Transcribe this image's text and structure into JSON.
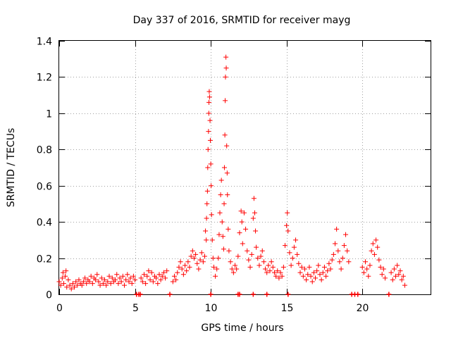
{
  "chart_data": {
    "type": "scatter",
    "title": "Day 337 of 2016, SRMTID for receiver mayg",
    "xlabel": "GPS time / hours",
    "ylabel": "SRMTID / TECUs",
    "xlim": [
      0,
      24.5
    ],
    "ylim": [
      0,
      1.4
    ],
    "xticks": [
      0,
      5,
      10,
      15,
      20
    ],
    "xtick_labels": [
      "0",
      "5",
      "10",
      "15",
      "20"
    ],
    "yticks": [
      0,
      0.2,
      0.4,
      0.6,
      0.8,
      1.0,
      1.2,
      1.4
    ],
    "ytick_labels": [
      "0",
      "0.2",
      "0.4",
      "0.6",
      "0.8",
      "1",
      "1.2",
      "1.4"
    ],
    "grid": true,
    "marker": "+",
    "color": "#ff0000",
    "series": [
      {
        "name": "SRMTID",
        "points": [
          [
            0.0,
            0.07
          ],
          [
            0.1,
            0.05
          ],
          [
            0.2,
            0.09
          ],
          [
            0.25,
            0.12
          ],
          [
            0.3,
            0.06
          ],
          [
            0.4,
            0.1
          ],
          [
            0.45,
            0.13
          ],
          [
            0.5,
            0.04
          ],
          [
            0.6,
            0.08
          ],
          [
            0.7,
            0.05
          ],
          [
            0.8,
            0.03
          ],
          [
            0.9,
            0.06
          ],
          [
            1.0,
            0.04
          ],
          [
            1.1,
            0.07
          ],
          [
            1.2,
            0.05
          ],
          [
            1.3,
            0.08
          ],
          [
            1.4,
            0.06
          ],
          [
            1.5,
            0.05
          ],
          [
            1.6,
            0.07
          ],
          [
            1.7,
            0.09
          ],
          [
            1.8,
            0.06
          ],
          [
            1.9,
            0.08
          ],
          [
            2.0,
            0.07
          ],
          [
            2.1,
            0.1
          ],
          [
            2.2,
            0.06
          ],
          [
            2.3,
            0.09
          ],
          [
            2.4,
            0.08
          ],
          [
            2.5,
            0.11
          ],
          [
            2.6,
            0.07
          ],
          [
            2.7,
            0.05
          ],
          [
            2.8,
            0.09
          ],
          [
            2.9,
            0.06
          ],
          [
            3.0,
            0.08
          ],
          [
            3.1,
            0.05
          ],
          [
            3.2,
            0.07
          ],
          [
            3.3,
            0.1
          ],
          [
            3.4,
            0.06
          ],
          [
            3.5,
            0.09
          ],
          [
            3.6,
            0.07
          ],
          [
            3.7,
            0.08
          ],
          [
            3.8,
            0.11
          ],
          [
            3.9,
            0.06
          ],
          [
            4.0,
            0.09
          ],
          [
            4.1,
            0.07
          ],
          [
            4.2,
            0.1
          ],
          [
            4.3,
            0.05
          ],
          [
            4.4,
            0.08
          ],
          [
            4.5,
            0.11
          ],
          [
            4.6,
            0.07
          ],
          [
            4.7,
            0.09
          ],
          [
            4.8,
            0.06
          ],
          [
            4.9,
            0.1
          ],
          [
            5.0,
            0.08
          ],
          [
            5.4,
            0.09
          ],
          [
            5.5,
            0.07
          ],
          [
            5.6,
            0.11
          ],
          [
            5.7,
            0.06
          ],
          [
            5.8,
            0.1
          ],
          [
            5.9,
            0.13
          ],
          [
            6.0,
            0.08
          ],
          [
            6.1,
            0.12
          ],
          [
            6.2,
            0.07
          ],
          [
            6.3,
            0.1
          ],
          [
            6.4,
            0.09
          ],
          [
            6.5,
            0.06
          ],
          [
            6.6,
            0.11
          ],
          [
            6.7,
            0.08
          ],
          [
            6.8,
            0.1
          ],
          [
            6.9,
            0.12
          ],
          [
            7.0,
            0.09
          ],
          [
            7.1,
            0.13
          ],
          [
            7.5,
            0.07
          ],
          [
            7.6,
            0.1
          ],
          [
            7.7,
            0.08
          ],
          [
            7.8,
            0.12
          ],
          [
            7.9,
            0.15
          ],
          [
            8.0,
            0.18
          ],
          [
            8.1,
            0.14
          ],
          [
            8.2,
            0.11
          ],
          [
            8.3,
            0.16
          ],
          [
            8.4,
            0.13
          ],
          [
            8.5,
            0.18
          ],
          [
            8.6,
            0.15
          ],
          [
            8.7,
            0.21
          ],
          [
            8.8,
            0.24
          ],
          [
            8.9,
            0.2
          ],
          [
            9.0,
            0.22
          ],
          [
            9.1,
            0.17
          ],
          [
            9.2,
            0.14
          ],
          [
            9.3,
            0.19
          ],
          [
            9.4,
            0.23
          ],
          [
            9.5,
            0.18
          ],
          [
            9.6,
            0.21
          ],
          [
            9.65,
            0.35
          ],
          [
            9.7,
            0.3
          ],
          [
            9.72,
            0.42
          ],
          [
            9.75,
            0.5
          ],
          [
            9.78,
            0.57
          ],
          [
            9.8,
            0.7
          ],
          [
            9.82,
            0.8
          ],
          [
            9.85,
            0.9
          ],
          [
            9.87,
            1.0
          ],
          [
            9.88,
            1.06
          ],
          [
            9.9,
            1.12
          ],
          [
            9.92,
            1.09
          ],
          [
            9.95,
            0.96
          ],
          [
            9.97,
            0.85
          ],
          [
            10.0,
            0.72
          ],
          [
            10.02,
            0.6
          ],
          [
            10.05,
            0.44
          ],
          [
            10.1,
            0.3
          ],
          [
            10.15,
            0.2
          ],
          [
            10.2,
            0.15
          ],
          [
            10.3,
            0.1
          ],
          [
            10.4,
            0.14
          ],
          [
            10.5,
            0.2
          ],
          [
            10.55,
            0.33
          ],
          [
            10.6,
            0.45
          ],
          [
            10.65,
            0.55
          ],
          [
            10.7,
            0.63
          ],
          [
            10.75,
            0.4
          ],
          [
            10.8,
            0.32
          ],
          [
            10.85,
            0.25
          ],
          [
            10.88,
            0.5
          ],
          [
            10.9,
            0.7
          ],
          [
            10.93,
            0.88
          ],
          [
            10.95,
            1.07
          ],
          [
            10.97,
            1.2
          ],
          [
            11.0,
            1.31
          ],
          [
            11.02,
            1.25
          ],
          [
            11.05,
            0.82
          ],
          [
            11.08,
            0.67
          ],
          [
            11.1,
            0.55
          ],
          [
            11.15,
            0.36
          ],
          [
            11.2,
            0.24
          ],
          [
            11.3,
            0.18
          ],
          [
            11.4,
            0.14
          ],
          [
            11.5,
            0.12
          ],
          [
            11.6,
            0.16
          ],
          [
            11.7,
            0.14
          ],
          [
            11.8,
            0.21
          ],
          [
            11.9,
            0.34
          ],
          [
            12.0,
            0.46
          ],
          [
            12.05,
            0.4
          ],
          [
            12.1,
            0.28
          ],
          [
            12.2,
            0.45
          ],
          [
            12.3,
            0.36
          ],
          [
            12.4,
            0.24
          ],
          [
            12.5,
            0.19
          ],
          [
            12.6,
            0.15
          ],
          [
            12.7,
            0.22
          ],
          [
            12.8,
            0.42
          ],
          [
            12.85,
            0.53
          ],
          [
            12.9,
            0.45
          ],
          [
            12.95,
            0.35
          ],
          [
            13.0,
            0.26
          ],
          [
            13.1,
            0.2
          ],
          [
            13.2,
            0.16
          ],
          [
            13.3,
            0.21
          ],
          [
            13.4,
            0.24
          ],
          [
            13.5,
            0.18
          ],
          [
            13.6,
            0.14
          ],
          [
            13.7,
            0.12
          ],
          [
            13.8,
            0.16
          ],
          [
            13.9,
            0.13
          ],
          [
            14.0,
            0.18
          ],
          [
            14.1,
            0.15
          ],
          [
            14.2,
            0.12
          ],
          [
            14.3,
            0.1
          ],
          [
            14.4,
            0.13
          ],
          [
            14.5,
            0.09
          ],
          [
            14.6,
            0.12
          ],
          [
            14.7,
            0.1
          ],
          [
            14.8,
            0.15
          ],
          [
            14.9,
            0.27
          ],
          [
            15.0,
            0.38
          ],
          [
            15.05,
            0.45
          ],
          [
            15.1,
            0.35
          ],
          [
            15.2,
            0.23
          ],
          [
            15.3,
            0.16
          ],
          [
            15.4,
            0.2
          ],
          [
            15.5,
            0.26
          ],
          [
            15.6,
            0.3
          ],
          [
            15.7,
            0.22
          ],
          [
            15.8,
            0.17
          ],
          [
            15.9,
            0.12
          ],
          [
            16.0,
            0.15
          ],
          [
            16.1,
            0.1
          ],
          [
            16.2,
            0.14
          ],
          [
            16.3,
            0.08
          ],
          [
            16.4,
            0.11
          ],
          [
            16.5,
            0.15
          ],
          [
            16.6,
            0.1
          ],
          [
            16.7,
            0.07
          ],
          [
            16.8,
            0.12
          ],
          [
            16.9,
            0.09
          ],
          [
            17.0,
            0.13
          ],
          [
            17.1,
            0.16
          ],
          [
            17.2,
            0.11
          ],
          [
            17.3,
            0.08
          ],
          [
            17.4,
            0.12
          ],
          [
            17.5,
            0.15
          ],
          [
            17.6,
            0.1
          ],
          [
            17.7,
            0.13
          ],
          [
            17.8,
            0.17
          ],
          [
            17.9,
            0.14
          ],
          [
            18.0,
            0.19
          ],
          [
            18.1,
            0.22
          ],
          [
            18.2,
            0.28
          ],
          [
            18.3,
            0.36
          ],
          [
            18.4,
            0.24
          ],
          [
            18.5,
            0.18
          ],
          [
            18.6,
            0.14
          ],
          [
            18.7,
            0.2
          ],
          [
            18.8,
            0.27
          ],
          [
            18.9,
            0.33
          ],
          [
            19.0,
            0.24
          ],
          [
            19.1,
            0.18
          ],
          [
            20.0,
            0.15
          ],
          [
            20.1,
            0.12
          ],
          [
            20.2,
            0.18
          ],
          [
            20.3,
            0.14
          ],
          [
            20.4,
            0.1
          ],
          [
            20.5,
            0.16
          ],
          [
            20.6,
            0.24
          ],
          [
            20.7,
            0.28
          ],
          [
            20.8,
            0.22
          ],
          [
            20.9,
            0.3
          ],
          [
            21.0,
            0.26
          ],
          [
            21.1,
            0.19
          ],
          [
            21.2,
            0.15
          ],
          [
            21.3,
            0.11
          ],
          [
            21.4,
            0.14
          ],
          [
            21.5,
            0.09
          ],
          [
            21.9,
            0.12
          ],
          [
            22.0,
            0.08
          ],
          [
            22.1,
            0.14
          ],
          [
            22.2,
            0.1
          ],
          [
            22.3,
            0.16
          ],
          [
            22.4,
            0.11
          ],
          [
            22.5,
            0.13
          ],
          [
            22.6,
            0.08
          ],
          [
            22.7,
            0.1
          ],
          [
            22.8,
            0.05
          ]
        ]
      }
    ],
    "zero_markers_x": [
      5.1,
      5.25,
      5.35,
      7.3,
      10.0,
      11.8,
      11.9,
      12.8,
      13.7,
      15.1,
      19.3,
      19.5,
      19.7,
      21.75
    ]
  }
}
